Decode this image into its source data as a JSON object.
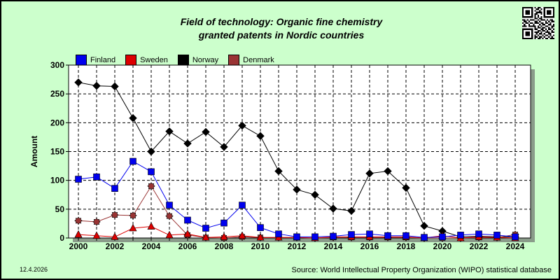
{
  "chart_data": {
    "type": "line",
    "title_line1": "Field of technology: Organic fine chemistry",
    "title_line2": "granted patents in Nordic countries",
    "ylabel": "Amount",
    "xlabel": "",
    "ylim": [
      0,
      300
    ],
    "yticks": [
      0,
      50,
      100,
      150,
      200,
      250,
      300
    ],
    "xlim": [
      2000,
      2024
    ],
    "xticks": [
      2000,
      2002,
      2004,
      2006,
      2008,
      2010,
      2012,
      2014,
      2016,
      2018,
      2020,
      2022,
      2024
    ],
    "x": [
      2000,
      2001,
      2002,
      2003,
      2004,
      2005,
      2006,
      2007,
      2008,
      2009,
      2010,
      2011,
      2012,
      2013,
      2014,
      2015,
      2016,
      2017,
      2018,
      2019,
      2020,
      2021,
      2022,
      2023,
      2024
    ],
    "grid": true,
    "legend_position": "top-left",
    "series": [
      {
        "name": "Finland",
        "color": "#0000ee",
        "marker": "square",
        "values": [
          102,
          106,
          86,
          133,
          115,
          57,
          31,
          17,
          26,
          57,
          18,
          7,
          2,
          2,
          3,
          6,
          7,
          4,
          4,
          1,
          2,
          5,
          7,
          5,
          2
        ]
      },
      {
        "name": "Sweden",
        "color": "#dd0000",
        "marker": "triangle",
        "values": [
          6,
          4,
          2,
          17,
          20,
          5,
          7,
          1,
          2,
          4,
          1,
          1,
          1,
          0,
          2,
          2,
          2,
          2,
          2,
          0,
          4,
          0,
          2,
          1,
          0
        ]
      },
      {
        "name": "Norway",
        "color": "#000000",
        "marker": "diamond",
        "values": [
          270,
          264,
          263,
          208,
          150,
          185,
          164,
          184,
          158,
          195,
          177,
          116,
          84,
          75,
          51,
          47,
          112,
          116,
          87,
          21,
          12,
          2,
          3,
          2,
          2
        ]
      },
      {
        "name": "Denmark",
        "color": "#993333",
        "marker": "star",
        "values": [
          30,
          28,
          40,
          39,
          90,
          38,
          5,
          1,
          0,
          2,
          1,
          1,
          1,
          0,
          1,
          1,
          1,
          1,
          1,
          0,
          0,
          0,
          1,
          1,
          6
        ]
      }
    ]
  },
  "footer": {
    "date": "12.4.2026",
    "source": "Source: World Intellectual Property Organization (WIPO) statistical database"
  },
  "qr_icon": "qr-code-icon"
}
